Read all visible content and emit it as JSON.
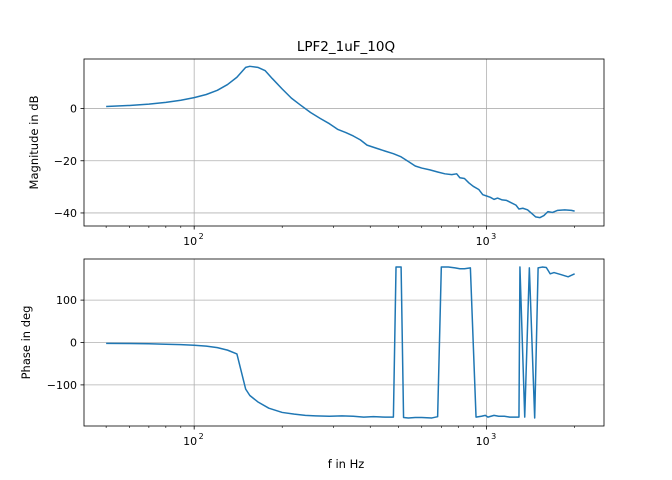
{
  "title": "LPF2_1uF_10Q",
  "chart_data": [
    {
      "type": "line",
      "title": "LPF2_1uF_10Q",
      "xlabel": "",
      "ylabel": "Magnitude in dB",
      "xscale": "log",
      "xlim": [
        42,
        2520
      ],
      "ylim": [
        -45,
        19
      ],
      "grid": true,
      "x_ticks": [
        {
          "value": 100,
          "label": "10",
          "exp": "2"
        },
        {
          "value": 1000,
          "label": "10",
          "exp": "3"
        }
      ],
      "y_ticks": [
        {
          "value": 0,
          "label": "0"
        },
        {
          "value": -20,
          "label": "−20"
        },
        {
          "value": -40,
          "label": "−40"
        }
      ],
      "series": [
        {
          "color": "#1f77b4",
          "points": [
            [
              50,
              0.8
            ],
            [
              60,
              1.2
            ],
            [
              70,
              1.7
            ],
            [
              80,
              2.4
            ],
            [
              90,
              3.2
            ],
            [
              100,
              4.2
            ],
            [
              110,
              5.4
            ],
            [
              120,
              7.0
            ],
            [
              130,
              9.2
            ],
            [
              140,
              12.0
            ],
            [
              150,
              15.8
            ],
            [
              155,
              16.2
            ],
            [
              165,
              15.8
            ],
            [
              175,
              14.5
            ],
            [
              185,
              11.5
            ],
            [
              200,
              7.5
            ],
            [
              215,
              4.0
            ],
            [
              230,
              1.5
            ],
            [
              250,
              -1.5
            ],
            [
              270,
              -3.8
            ],
            [
              290,
              -5.8
            ],
            [
              310,
              -8.0
            ],
            [
              330,
              -9.2
            ],
            [
              350,
              -10.5
            ],
            [
              370,
              -12.0
            ],
            [
              390,
              -14.0
            ],
            [
              420,
              -15.2
            ],
            [
              450,
              -16.3
            ],
            [
              480,
              -17.3
            ],
            [
              510,
              -18.5
            ],
            [
              540,
              -20.3
            ],
            [
              570,
              -22.0
            ],
            [
              600,
              -22.8
            ],
            [
              640,
              -23.5
            ],
            [
              680,
              -24.3
            ],
            [
              720,
              -25.0
            ],
            [
              760,
              -25.3
            ],
            [
              790,
              -25.0
            ],
            [
              810,
              -26.5
            ],
            [
              840,
              -26.8
            ],
            [
              870,
              -28.5
            ],
            [
              900,
              -29.8
            ],
            [
              940,
              -31.0
            ],
            [
              970,
              -33.0
            ],
            [
              1000,
              -33.5
            ],
            [
              1030,
              -34.0
            ],
            [
              1060,
              -34.8
            ],
            [
              1090,
              -34.3
            ],
            [
              1130,
              -35.0
            ],
            [
              1170,
              -35.2
            ],
            [
              1210,
              -36.0
            ],
            [
              1260,
              -37.0
            ],
            [
              1290,
              -38.5
            ],
            [
              1330,
              -38.2
            ],
            [
              1380,
              -38.8
            ],
            [
              1420,
              -40.0
            ],
            [
              1470,
              -41.5
            ],
            [
              1520,
              -41.8
            ],
            [
              1570,
              -41.0
            ],
            [
              1620,
              -39.5
            ],
            [
              1680,
              -39.8
            ],
            [
              1750,
              -39.0
            ],
            [
              1850,
              -38.8
            ],
            [
              1950,
              -39.0
            ],
            [
              2000,
              -39.3
            ]
          ]
        }
      ]
    },
    {
      "type": "line",
      "title": "",
      "xlabel": "f in Hz",
      "ylabel": "Phase in deg",
      "xscale": "log",
      "xlim": [
        42,
        2520
      ],
      "ylim": [
        -197,
        197
      ],
      "grid": true,
      "x_ticks": [
        {
          "value": 100,
          "label": "10",
          "exp": "2"
        },
        {
          "value": 1000,
          "label": "10",
          "exp": "3"
        }
      ],
      "y_ticks": [
        {
          "value": 100,
          "label": "100"
        },
        {
          "value": 0,
          "label": "0"
        },
        {
          "value": -100,
          "label": "−100"
        }
      ],
      "series": [
        {
          "color": "#1f77b4",
          "points": [
            [
              50,
              -2
            ],
            [
              60,
              -2.5
            ],
            [
              70,
              -3
            ],
            [
              80,
              -4
            ],
            [
              90,
              -5
            ],
            [
              100,
              -6.5
            ],
            [
              110,
              -8.5
            ],
            [
              120,
              -12
            ],
            [
              130,
              -18
            ],
            [
              140,
              -27
            ],
            [
              150,
              -110
            ],
            [
              155,
              -125
            ],
            [
              165,
              -140
            ],
            [
              180,
              -155
            ],
            [
              200,
              -165
            ],
            [
              220,
              -169
            ],
            [
              240,
              -172
            ],
            [
              260,
              -173
            ],
            [
              290,
              -174
            ],
            [
              320,
              -173
            ],
            [
              350,
              -174
            ],
            [
              380,
              -176
            ],
            [
              410,
              -175
            ],
            [
              450,
              -176
            ],
            [
              480,
              -176
            ],
            [
              490,
              178
            ],
            [
              510,
              178
            ],
            [
              520,
              -177
            ],
            [
              540,
              -178
            ],
            [
              570,
              -177
            ],
            [
              600,
              -177
            ],
            [
              650,
              -178
            ],
            [
              680,
              -175
            ],
            [
              700,
              178
            ],
            [
              740,
              178
            ],
            [
              780,
              176
            ],
            [
              810,
              174
            ],
            [
              840,
              174
            ],
            [
              880,
              176
            ],
            [
              920,
              -176
            ],
            [
              960,
              -174
            ],
            [
              990,
              -172
            ],
            [
              1010,
              -176
            ],
            [
              1060,
              -172
            ],
            [
              1100,
              -174
            ],
            [
              1150,
              -174
            ],
            [
              1200,
              -176
            ],
            [
              1290,
              -176
            ],
            [
              1300,
              178
            ],
            [
              1350,
              -176
            ],
            [
              1400,
              176
            ],
            [
              1460,
              -178
            ],
            [
              1500,
              176
            ],
            [
              1550,
              178
            ],
            [
              1600,
              177
            ],
            [
              1650,
              162
            ],
            [
              1700,
              165
            ],
            [
              1800,
              160
            ],
            [
              1900,
              155
            ],
            [
              2000,
              162
            ]
          ]
        }
      ]
    }
  ]
}
